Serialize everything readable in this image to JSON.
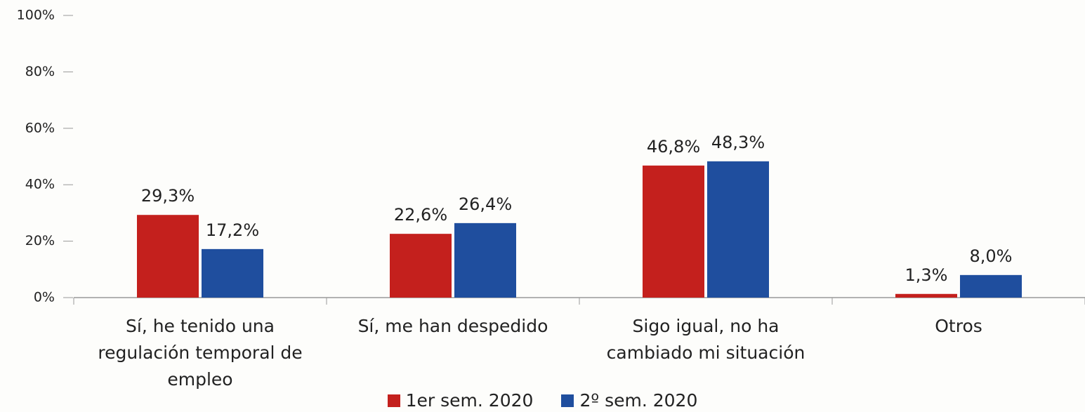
{
  "chart_data": {
    "type": "bar",
    "categories": [
      "Sí, he tenido una regulación temporal de empleo",
      "Sí, me han despedido",
      "Sigo igual, no ha cambiado mi situación",
      "Otros"
    ],
    "series": [
      {
        "name": "1er sem. 2020",
        "color": "#c4201d",
        "values": [
          29.3,
          22.6,
          46.8,
          1.3
        ],
        "value_labels": [
          "29,3%",
          "22,6%",
          "46,8%",
          "1,3%"
        ]
      },
      {
        "name": "2º sem. 2020",
        "color": "#1f4e9e",
        "values": [
          17.2,
          26.4,
          48.3,
          8.0
        ],
        "value_labels": [
          "17,2%",
          "26,4%",
          "48,3%",
          "8,0%"
        ]
      }
    ],
    "ylim": [
      0,
      100
    ],
    "yticks": [
      {
        "value": 0,
        "label": "0%"
      },
      {
        "value": 20,
        "label": "20%"
      },
      {
        "value": 40,
        "label": "40%"
      },
      {
        "value": 60,
        "label": "60%"
      },
      {
        "value": 80,
        "label": "80%"
      },
      {
        "value": 100,
        "label": "100%"
      }
    ],
    "legend": "bottom"
  }
}
